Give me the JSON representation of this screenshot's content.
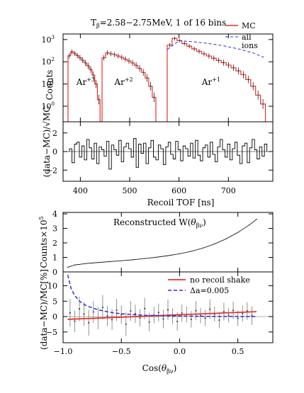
{
  "chart_data": [
    {
      "type": "line",
      "panel": "tof-counts",
      "title": "T",
      "title_sub": "β",
      "title_rest": "=2.58−2.75MeV, 1 of 16 bins",
      "ylabel": "Counts",
      "xlabel": "Recoil TOF [ns]",
      "xlim": [
        365,
        790
      ],
      "yscale": "log",
      "ylim_exp": [
        -0.7,
        3.25
      ],
      "ytick_exps": [
        0,
        1,
        2,
        3
      ],
      "yticks": [
        "10",
        "10",
        "10",
        "10"
      ],
      "ytick_sups": [
        "0",
        "1",
        "2",
        "3"
      ],
      "xticks": [
        "400",
        "500",
        "600",
        "700"
      ],
      "xtick_values": [
        400,
        500,
        600,
        700
      ],
      "legend": {
        "placement": "top-right",
        "mc": "MC",
        "all_ions_1": "all",
        "all_ions_2": "ions"
      },
      "colors": {
        "mc": "#e8312c",
        "all_ions": "#2b2bd6",
        "data": "#000000"
      },
      "peak_labels": [
        {
          "base": "Ar",
          "sup": "+3",
          "x": 392,
          "log_y": 0.95
        },
        {
          "base": "Ar",
          "sup": "+2",
          "x": 469,
          "log_y": 0.95
        },
        {
          "base": "Ar",
          "sup": "+1",
          "x": 646,
          "log_y": 0.95
        }
      ],
      "peaks": [
        {
          "name": "Ar+3",
          "start": 375,
          "end": 440,
          "log_values": [
            2.27,
            2.45,
            2.38,
            2.28,
            2.18,
            2.07,
            1.95,
            1.82,
            1.65,
            1.4,
            1.0,
            0.3
          ]
        },
        {
          "name": "Ar+2",
          "start": 444,
          "end": 553,
          "log_values": [
            2.18,
            2.4,
            2.36,
            2.32,
            2.26,
            2.2,
            2.12,
            2.04,
            1.95,
            1.84,
            1.7,
            1.52,
            1.27,
            0.9,
            0.4
          ]
        },
        {
          "name": "Ar+1",
          "start": 576,
          "end": 775,
          "log_values": [
            2.75,
            3.05,
            2.95,
            2.82,
            2.7,
            2.58,
            2.47,
            2.36,
            2.26,
            2.16,
            2.06,
            1.96,
            1.85,
            1.73,
            1.59,
            1.42,
            1.2,
            0.9,
            0.5,
            0.1
          ]
        }
      ],
      "all_ions_curve": {
        "x": [
          576,
          600,
          630,
          660,
          690,
          720,
          750,
          772
        ],
        "log_y": [
          2.55,
          2.95,
          2.9,
          2.82,
          2.72,
          2.58,
          2.4,
          2.2
        ]
      }
    },
    {
      "type": "bar",
      "panel": "tof-residuals",
      "ylabel": "(data−MC)/√MC",
      "xlim": [
        365,
        790
      ],
      "ylim": [
        -3.2,
        3.2
      ],
      "yticks": [
        "2",
        "0",
        "−2"
      ],
      "ytick_values": [
        2,
        0,
        -2
      ],
      "residuals": [
        0.3,
        -1.2,
        0.8,
        1.0,
        -0.6,
        0.6,
        -0.9,
        1.3,
        0.4,
        -0.8,
        0.9,
        -1.3,
        0.5,
        0.2,
        -0.5,
        1.1,
        -1.9,
        0.7,
        0.2,
        -0.4,
        1.2,
        -1.1,
        0.5,
        0.9,
        0.3,
        -0.6,
        1.4,
        -1.7,
        0.8,
        -0.2,
        0.9,
        -1.3,
        0.4,
        1.2,
        -0.6,
        -0.9,
        0.7,
        0.3,
        -1.4,
        0.5,
        1.0,
        -0.3,
        -0.8,
        1.1,
        0.2,
        -1.0,
        0.6,
        0.3,
        -0.5,
        0.9,
        -0.7,
        1.2,
        -0.4,
        -1.0,
        0.4,
        0.7,
        -0.6,
        1.0,
        -0.3,
        -1.1,
        0.5,
        1.3,
        0.2,
        -0.6,
        0.8,
        -0.9,
        0.3,
        1.0,
        -0.4,
        -1.3,
        0.6,
        0.9,
        -1.2,
        0.4,
        1.3,
        0.2,
        -0.8,
        0.5,
        -0.5,
        0.8
      ]
    },
    {
      "type": "scatter",
      "panel": "w-distribution",
      "annotation": "Reconstructed W(",
      "annotation_theta": "θ",
      "annotation_sub": "βν",
      "annotation_close": ")",
      "ylabel": "Counts×10",
      "ylabel_sup": "5",
      "xlim": [
        -1.0,
        0.8
      ],
      "ylim": [
        0,
        4.1
      ],
      "yticks": [
        "4",
        "3",
        "2",
        "1",
        "0"
      ],
      "ytick_values": [
        4,
        3,
        2,
        1,
        0
      ],
      "curve": {
        "x": [
          -0.96,
          -0.9,
          -0.8,
          -0.7,
          -0.6,
          -0.5,
          -0.4,
          -0.3,
          -0.2,
          -0.1,
          0.0,
          0.1,
          0.2,
          0.3,
          0.4,
          0.5,
          0.6,
          0.66
        ],
        "y": [
          0.32,
          0.48,
          0.58,
          0.65,
          0.71,
          0.77,
          0.84,
          0.92,
          1.01,
          1.12,
          1.25,
          1.42,
          1.64,
          1.93,
          2.28,
          2.72,
          3.25,
          3.62
        ]
      }
    },
    {
      "type": "scatter",
      "panel": "w-residuals",
      "ylabel": "(data−MC)/MC[%]",
      "xlabel": "Cos(",
      "xlabel_theta": "θ",
      "xlabel_sub": "βν",
      "xlabel_close": ")",
      "xlim": [
        -1.0,
        0.8
      ],
      "ylim": [
        -8.5,
        14.5
      ],
      "yticks": [
        "10",
        "5",
        "0",
        "−5"
      ],
      "ytick_values": [
        10,
        5,
        0,
        -5
      ],
      "xticks": [
        "−1.0",
        "−0.5",
        "0.0",
        "0.5"
      ],
      "xtick_values": [
        -1.0,
        -0.5,
        0.0,
        0.5
      ],
      "legend": {
        "placement": "top-right",
        "no_shake": "no recoil shake",
        "delta_a": "Δa=0.005"
      },
      "colors": {
        "no_shake": "#e8312c",
        "delta_a": "#2b2bd6"
      },
      "no_recoil_shake": {
        "x": [
          -0.96,
          0.66
        ],
        "y": [
          -0.9,
          1.6
        ]
      },
      "delta_a_curve": {
        "x": [
          -0.96,
          -0.93,
          -0.9,
          -0.85,
          -0.8,
          -0.7,
          -0.6,
          -0.5,
          -0.3,
          0.0,
          0.3,
          0.66
        ],
        "y": [
          13.5,
          9.0,
          6.8,
          4.7,
          3.5,
          2.2,
          1.4,
          0.9,
          0.4,
          0.15,
          0.05,
          0.0
        ]
      },
      "points": {
        "x": [
          -0.94,
          -0.9,
          -0.86,
          -0.82,
          -0.78,
          -0.74,
          -0.7,
          -0.66,
          -0.62,
          -0.58,
          -0.54,
          -0.5,
          -0.46,
          -0.42,
          -0.38,
          -0.34,
          -0.3,
          -0.26,
          -0.22,
          -0.18,
          -0.14,
          -0.1,
          -0.06,
          -0.02,
          0.02,
          0.06,
          0.1,
          0.14,
          0.18,
          0.22,
          0.26,
          0.3,
          0.34,
          0.38,
          0.42,
          0.46,
          0.5,
          0.54,
          0.58,
          0.62
        ],
        "y": [
          1.2,
          -1.5,
          2.5,
          0.8,
          -2.0,
          1.5,
          -0.5,
          3.0,
          0.2,
          -1.0,
          2.1,
          0.6,
          -2.5,
          1.8,
          0.9,
          -0.4,
          2.6,
          -1.8,
          0.5,
          1.3,
          -0.8,
          2.2,
          0.1,
          -1.6,
          1.1,
          0.7,
          -0.9,
          1.9,
          0.3,
          -0.5,
          2.4,
          0.8,
          -1.2,
          1.6,
          0.4,
          2.0,
          -0.6,
          1.0,
          1.8,
          0.3
        ],
        "err": [
          4.5,
          3.5,
          4.0,
          3.8,
          4.2,
          3.5,
          3.6,
          4.0,
          3.2,
          3.4,
          3.6,
          3.0,
          3.8,
          3.2,
          3.0,
          2.8,
          3.5,
          3.0,
          2.7,
          2.9,
          3.0,
          3.3,
          2.6,
          3.0,
          2.8,
          2.6,
          2.7,
          3.1,
          2.5,
          2.6,
          3.2,
          2.4,
          2.6,
          2.9,
          2.3,
          2.8,
          2.5,
          2.6,
          2.9,
          3.0
        ]
      }
    }
  ]
}
